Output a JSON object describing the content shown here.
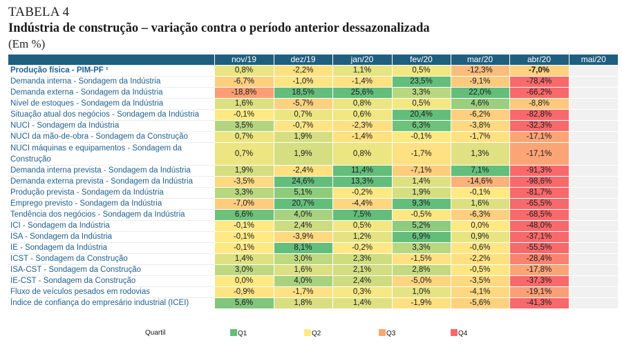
{
  "header": {
    "table_label": "TABELA 4",
    "title": "Indústria de construção – variação contra o período anterior dessazonalizada",
    "unit": "(Em %)"
  },
  "colors": {
    "header_bg": "#1e5f80",
    "label_text": "#1f5f8f",
    "empty_bg": "#f1f1f1"
  },
  "columns": [
    "nov/19",
    "dez/19",
    "jan/20",
    "fev/20",
    "mar/20",
    "abr/20",
    "mai/20"
  ],
  "rows": [
    {
      "label": "Produção física - PIM-PF ¹",
      "bold": true,
      "values": [
        "0,8%",
        "-2,2%",
        "1,1%",
        "0,5%",
        "-12,3%",
        "-7,0%",
        ""
      ],
      "colors": [
        "#e9e582",
        "#fde181",
        "#e6e483",
        "#f3e781",
        "#fbbd7b",
        "#fdd17f",
        ""
      ]
    },
    {
      "label": "Demanda interna - Sondagem da Indústria",
      "values": [
        "-6,7%",
        "-1,0%",
        "-1,4%",
        "23,5%",
        "-9,1%",
        "-78,4%",
        ""
      ],
      "colors": [
        "#fdcf7e",
        "#fee482",
        "#fee181",
        "#63be7b",
        "#fdca7d",
        "#f8696b",
        ""
      ]
    },
    {
      "label": "Demanda externa - Sondagem da Indústria",
      "values": [
        "-18,8%",
        "18,5%",
        "25,6%",
        "3,3%",
        "22,0%",
        "-66,2%",
        ""
      ],
      "colors": [
        "#f99e75",
        "#63be7b",
        "#63be7b",
        "#b9d780",
        "#63be7b",
        "#f8696b",
        ""
      ]
    },
    {
      "label": "Nível de estoques - Sondagem da Indústria",
      "values": [
        "1,6%",
        "-5,7%",
        "0,8%",
        "0,5%",
        "4,6%",
        "-8,8%",
        ""
      ],
      "colors": [
        "#dce081",
        "#fdd17f",
        "#ebe582",
        "#f3e781",
        "#9bcf7e",
        "#fdca7d",
        ""
      ]
    },
    {
      "label": "Situação atual dos negócios - Sondagem da Indústria",
      "values": [
        "-0,1%",
        "0,7%",
        "0,6%",
        "20,4%",
        "-6,2%",
        "-82,8%",
        ""
      ],
      "colors": [
        "#fee983",
        "#ede582",
        "#f0e682",
        "#63be7b",
        "#fdcf7e",
        "#f8696b",
        ""
      ]
    },
    {
      "label": "NUCI - Sondagem da Indústria",
      "values": [
        "3,5%",
        "-0,7%",
        "-2,3%",
        "6,3%",
        "-3,8%",
        "-32,3%",
        ""
      ],
      "colors": [
        "#b4d57f",
        "#fee582",
        "#fee081",
        "#6ec27b",
        "#fed980",
        "#f8696b",
        ""
      ]
    },
    {
      "label": "NUCI da mão-de-obra - Sondagem da Construção",
      "values": [
        "0,7%",
        "1,9%",
        "-1,4%",
        "-0,1%",
        "-1,7%",
        "-17,1%",
        ""
      ],
      "colors": [
        "#ede582",
        "#d5de81",
        "#fee181",
        "#fee983",
        "#fee182",
        "#fba577",
        ""
      ]
    },
    {
      "label": "NUCI máquinas e equipamentos - Sondagem da Construção",
      "tall": true,
      "values": [
        "0,7%",
        "1,9%",
        "0,8%",
        "-1,7%",
        "1,3%",
        "-17,1%",
        ""
      ],
      "colors": [
        "#ede582",
        "#d5de81",
        "#ebe582",
        "#fee182",
        "#dfe182",
        "#fba577",
        ""
      ]
    },
    {
      "label": "Demanda interna prevista - Sondagem da Indústria",
      "values": [
        "1,9%",
        "-2,4%",
        "11,4%",
        "-7,1%",
        "7,1%",
        "-91,3%",
        ""
      ],
      "colors": [
        "#d5de81",
        "#fee081",
        "#63be7b",
        "#fdcd7e",
        "#63be7b",
        "#f8696b",
        ""
      ]
    },
    {
      "label": "Demanda externa prevista - Sondagem da Indústria",
      "values": [
        "-3,5%",
        "24,6%",
        "13,3%",
        "1,4%",
        "-14,6%",
        "-98,6%",
        ""
      ],
      "colors": [
        "#fed980",
        "#63be7b",
        "#63be7b",
        "#dee181",
        "#fbb179",
        "#f8696b",
        ""
      ]
    },
    {
      "label": "Produção prevista - Sondagem da Indústria",
      "values": [
        "3,3%",
        "5,1%",
        "-0,2%",
        "1,9%",
        "-0,1%",
        "-81,7%",
        ""
      ],
      "colors": [
        "#b9d780",
        "#8fcb7d",
        "#fee883",
        "#d5de81",
        "#fee983",
        "#f8696b",
        ""
      ]
    },
    {
      "label": "Emprego  previsto - Sondagem da Indústria",
      "values": [
        "-7,0%",
        "20,7%",
        "-4,4%",
        "9,3%",
        "1,6%",
        "-65,5%",
        ""
      ],
      "colors": [
        "#fdcd7e",
        "#63be7b",
        "#fdd680",
        "#63be7b",
        "#dce081",
        "#f8696b",
        ""
      ]
    },
    {
      "label": "Tendência dos negócios - Sondagem da Indústria",
      "values": [
        "6,6%",
        "4,0%",
        "7,5%",
        "-0,5%",
        "-6,3%",
        "-68,5%",
        ""
      ],
      "colors": [
        "#6ec27b",
        "#a8d27f",
        "#63be7b",
        "#fee783",
        "#fdcf7e",
        "#f8696b",
        ""
      ]
    },
    {
      "label": "ICI - Sondagem da Indústria",
      "values": [
        "-0,1%",
        "2,4%",
        "0,5%",
        "5,2%",
        "0,0%",
        "-48,0%",
        ""
      ],
      "colors": [
        "#fee983",
        "#cddc80",
        "#f3e781",
        "#8ecb7d",
        "#fee983",
        "#f8696b",
        ""
      ]
    },
    {
      "label": "ISA - Sondagem da Indústria",
      "values": [
        "-0,1%",
        "-3,9%",
        "1,2%",
        "6,9%",
        "0,9%",
        "-37,1%",
        ""
      ],
      "colors": [
        "#fee983",
        "#fed980",
        "#e3e382",
        "#63be7b",
        "#e8e482",
        "#f8696b",
        ""
      ]
    },
    {
      "label": "IE - Sondagem da Indústria",
      "values": [
        "-0,1%",
        "8,1%",
        "-0,2%",
        "3,3%",
        "-0,6%",
        "-55,5%",
        ""
      ],
      "colors": [
        "#fee983",
        "#63be7b",
        "#fee883",
        "#b9d780",
        "#fee683",
        "#f8696b",
        ""
      ]
    },
    {
      "label": "ICST - Sondagem da Construção",
      "values": [
        "1,4%",
        "3,0%",
        "2,3%",
        "-1,5%",
        "-2,2%",
        "-28,4%",
        ""
      ],
      "colors": [
        "#dee181",
        "#bfd980",
        "#cfdd81",
        "#fee181",
        "#fee081",
        "#f98370",
        ""
      ]
    },
    {
      "label": "ISA-CST - Sondagem da Construção",
      "values": [
        "3,0%",
        "1,6%",
        "2,1%",
        "2,8%",
        "-0,5%",
        "-17,8%",
        ""
      ],
      "colors": [
        "#bfd980",
        "#dce081",
        "#d3dd81",
        "#c4da80",
        "#fee783",
        "#fba577",
        ""
      ]
    },
    {
      "label": "IE-CST - Sondagem da Construção",
      "values": [
        "0,0%",
        "4,0%",
        "2,4%",
        "-5,0%",
        "-3,5%",
        "-37,3%",
        ""
      ],
      "colors": [
        "#fee983",
        "#a8d27f",
        "#cddc80",
        "#fdd47f",
        "#fed980",
        "#f8696b",
        ""
      ]
    },
    {
      "label": "Fluxo de veículos pesados em rodovias",
      "values": [
        "-0,9%",
        "-1,7%",
        "0,3%",
        "1,0%",
        "-4,1%",
        "-19,1%",
        ""
      ],
      "colors": [
        "#fee482",
        "#fee182",
        "#f6e882",
        "#e6e482",
        "#fed880",
        "#fa9f76",
        ""
      ]
    },
    {
      "label": "Índice de confiança do empresário industrial (ICEI)",
      "values": [
        "5,6%",
        "1,8%",
        "1,4%",
        "-1,9%",
        "-5,6%",
        "-41,3%",
        ""
      ],
      "colors": [
        "#80c67c",
        "#d7df81",
        "#dee181",
        "#fee081",
        "#fdd27f",
        "#f8696b",
        ""
      ]
    }
  ],
  "legend": {
    "title": "Quartil",
    "items": [
      {
        "label": "Q1",
        "color": "#63be7b"
      },
      {
        "label": "Q2",
        "color": "#ffeb84"
      },
      {
        "label": "Q3",
        "color": "#f9a873"
      },
      {
        "label": "Q4",
        "color": "#f8696b"
      }
    ]
  }
}
